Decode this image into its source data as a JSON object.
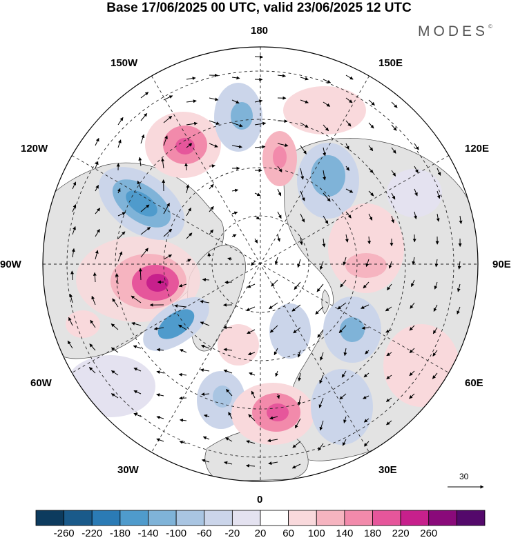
{
  "header": {
    "title": "Base 17/06/2025 00 UTC, valid 23/06/2025 12 UTC",
    "brand": "MODES",
    "brand_mark": "©"
  },
  "map": {
    "projection": "north-polar-stereographic",
    "longitude_labels": [
      {
        "id": "lon-180",
        "text": "180"
      },
      {
        "id": "lon-150e",
        "text": "150E"
      },
      {
        "id": "lon-120e",
        "text": "120E"
      },
      {
        "id": "lon-90e",
        "text": "90E"
      },
      {
        "id": "lon-60e",
        "text": "60E"
      },
      {
        "id": "lon-30e",
        "text": "30E"
      },
      {
        "id": "lon-0",
        "text": "0"
      },
      {
        "id": "lon-30w",
        "text": "30W"
      },
      {
        "id": "lon-60w",
        "text": "60W"
      },
      {
        "id": "lon-90w",
        "text": "90W"
      },
      {
        "id": "lon-120w",
        "text": "120W"
      },
      {
        "id": "lon-150w",
        "text": "150W"
      }
    ],
    "reference_vector": "30",
    "colors": {
      "land": "#e3e3e3",
      "ocean": "#ffffff",
      "coast": "#333333"
    }
  },
  "colorbar": {
    "colors": [
      "#0d3b5e",
      "#1a5a8a",
      "#2b7bb5",
      "#4f9bcc",
      "#7fb3d8",
      "#a9c5e2",
      "#cbd5ea",
      "#e4e2f0",
      "#ffffff",
      "#f9d9dc",
      "#f6b4c0",
      "#f28aab",
      "#e6569b",
      "#c7208c",
      "#8a0a7a",
      "#54096b"
    ],
    "labels": [
      "-260",
      "-220",
      "-180",
      "-140",
      "-100",
      "-60",
      "-20",
      "20",
      "60",
      "100",
      "140",
      "180",
      "220",
      "260"
    ]
  }
}
